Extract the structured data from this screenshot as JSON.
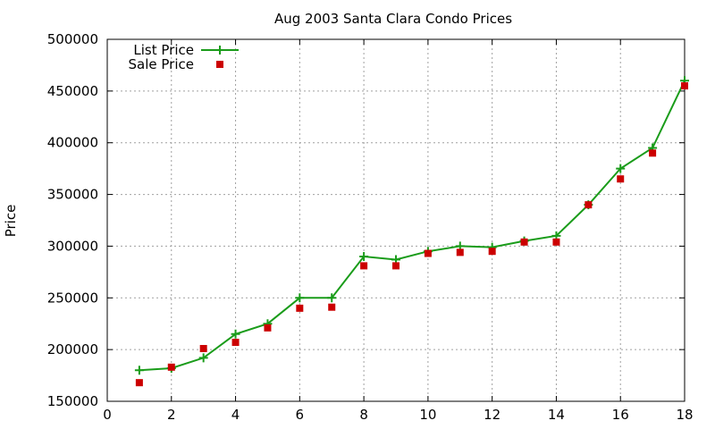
{
  "chart_data": {
    "type": "line",
    "title": "Aug 2003 Santa Clara Condo Prices",
    "xlabel": "",
    "ylabel": "Price",
    "xlim": [
      0,
      18
    ],
    "ylim": [
      150000,
      500000
    ],
    "xticks": [
      0,
      2,
      4,
      6,
      8,
      10,
      12,
      14,
      16,
      18
    ],
    "yticks": [
      150000,
      200000,
      250000,
      300000,
      350000,
      400000,
      450000,
      500000
    ],
    "grid": true,
    "legend_position": "top-left",
    "series": [
      {
        "name": "List Price",
        "style": "line+cross",
        "color": "#1a9c1a",
        "x": [
          1,
          2,
          3,
          4,
          5,
          6,
          7,
          8,
          9,
          10,
          11,
          12,
          13,
          14,
          15,
          16,
          17,
          18
        ],
        "y": [
          180000,
          182000,
          192000,
          215000,
          225000,
          250000,
          250000,
          290000,
          287000,
          295000,
          300000,
          299000,
          305000,
          310000,
          340000,
          375000,
          395000,
          460000
        ]
      },
      {
        "name": "Sale Price",
        "style": "square",
        "color": "#cc0000",
        "x": [
          1,
          2,
          3,
          4,
          5,
          6,
          7,
          8,
          9,
          10,
          11,
          12,
          13,
          14,
          15,
          16,
          17,
          18
        ],
        "y": [
          168000,
          183000,
          201000,
          207000,
          221000,
          240000,
          241000,
          281000,
          281000,
          293000,
          294000,
          295000,
          304000,
          304000,
          340000,
          365000,
          390000,
          455000
        ]
      }
    ]
  }
}
